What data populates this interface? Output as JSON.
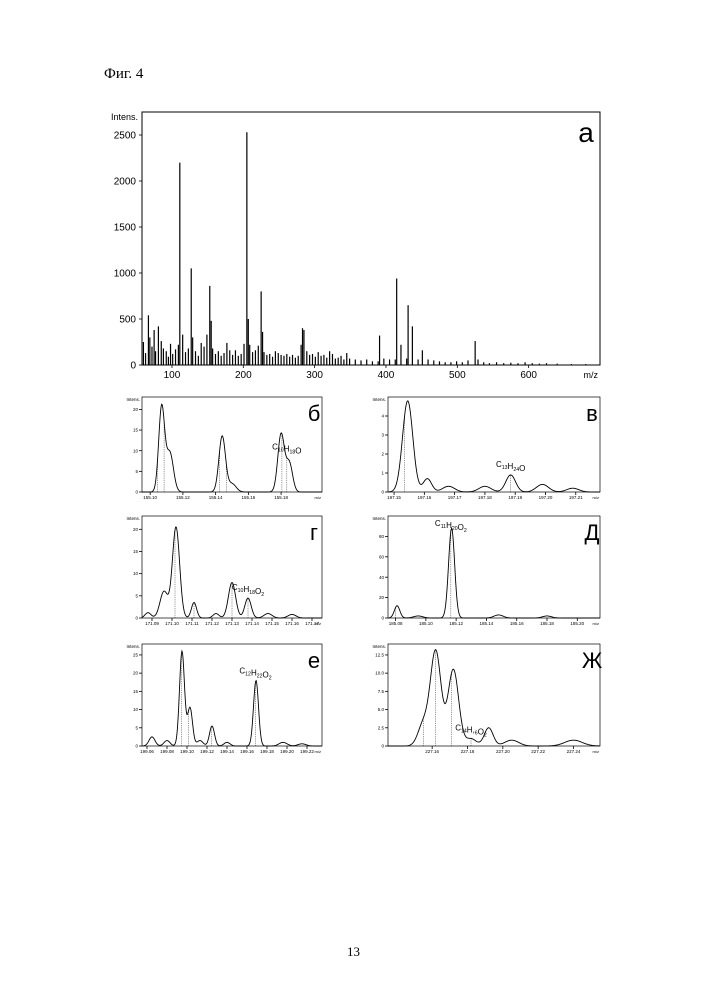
{
  "figure_caption": "Фиг. 4",
  "page_number": "13",
  "chart_data": [
    {
      "type": "bar",
      "panel": "а",
      "ylabel": "Intens.",
      "xlabel": "m/z",
      "xlim": [
        58,
        700
      ],
      "ylim": [
        0,
        2750
      ],
      "x_ticks": [
        100,
        200,
        300,
        400,
        500,
        600
      ],
      "x_tick_labels": [
        "100",
        "200",
        "300",
        "400",
        "500",
        "600"
      ],
      "y_ticks": [
        0,
        500,
        1000,
        1500,
        2000,
        2500
      ],
      "y_tick_labels": [
        "0",
        "500",
        "1000",
        "1500",
        "2000",
        "2500"
      ],
      "peaks_mz": [
        60,
        63,
        67,
        69,
        72,
        75,
        77,
        81,
        85,
        88,
        92,
        95,
        98,
        101,
        105,
        109,
        111,
        115,
        119,
        123,
        127,
        129,
        133,
        137,
        141,
        145,
        149,
        153,
        155,
        157,
        161,
        165,
        169,
        173,
        177,
        181,
        185,
        189,
        193,
        197,
        201,
        205,
        207,
        209,
        213,
        217,
        221,
        225,
        227,
        229,
        233,
        237,
        241,
        245,
        249,
        253,
        257,
        261,
        265,
        269,
        273,
        277,
        281,
        283,
        285,
        289,
        293,
        297,
        301,
        305,
        309,
        313,
        317,
        321,
        325,
        329,
        333,
        337,
        341,
        345,
        349,
        357,
        365,
        373,
        381,
        389,
        391,
        397,
        405,
        413,
        415,
        421,
        429,
        431,
        437,
        445,
        451,
        459,
        467,
        475,
        483,
        491,
        499,
        507,
        515,
        525,
        529,
        537,
        545,
        555,
        565,
        575,
        585,
        595,
        605,
        615,
        625,
        640,
        660,
        680
      ],
      "peaks_intensity": [
        250,
        130,
        540,
        300,
        200,
        380,
        150,
        420,
        260,
        180,
        150,
        90,
        230,
        120,
        170,
        220,
        2200,
        330,
        140,
        180,
        1050,
        300,
        150,
        100,
        240,
        200,
        330,
        860,
        480,
        180,
        120,
        150,
        100,
        130,
        240,
        160,
        110,
        160,
        100,
        120,
        230,
        2530,
        500,
        220,
        140,
        160,
        210,
        800,
        360,
        140,
        110,
        120,
        90,
        150,
        130,
        110,
        100,
        120,
        90,
        110,
        80,
        100,
        220,
        400,
        380,
        150,
        110,
        120,
        90,
        140,
        100,
        110,
        80,
        150,
        120,
        70,
        80,
        100,
        60,
        130,
        70,
        60,
        50,
        60,
        40,
        40,
        320,
        70,
        60,
        60,
        940,
        220,
        70,
        650,
        420,
        60,
        160,
        60,
        50,
        40,
        30,
        30,
        40,
        30,
        50,
        260,
        60,
        30,
        20,
        30,
        20,
        25,
        20,
        30,
        20,
        15,
        20,
        15,
        10,
        10
      ]
    },
    {
      "type": "line",
      "panel": "б",
      "ylabel": "Intens.",
      "xlabel": "m/z",
      "formula": "C10H18O",
      "xlim": [
        155.095,
        155.205
      ],
      "ylim": [
        0,
        23
      ],
      "x_ticks": [
        155.1,
        155.12,
        155.14,
        155.16,
        155.18
      ],
      "x_tick_labels": [
        "155.10",
        "155.12",
        "155.14",
        "155.16",
        "155.18"
      ],
      "y_ticks": [
        0,
        5,
        10,
        15,
        20
      ],
      "y_tick_labels": [
        "0",
        "5",
        "10",
        "15",
        "20"
      ],
      "peaks": [
        [
          155.107,
          20.5,
          0.0018
        ],
        [
          155.112,
          9.5,
          0.0022
        ],
        [
          155.144,
          13.5,
          0.002
        ],
        [
          155.15,
          2.0,
          0.0025
        ],
        [
          155.18,
          14.0,
          0.002
        ],
        [
          155.185,
          7.0,
          0.002
        ]
      ],
      "sticks": [
        155.1045,
        155.1085,
        155.1425,
        155.1465,
        155.1805,
        155.1835
      ]
    },
    {
      "type": "line",
      "panel": "в",
      "ylabel": "Intens.",
      "xlabel": "m/z",
      "formula": "C13H24O",
      "xlim": [
        197.148,
        197.218
      ],
      "ylim": [
        0,
        5
      ],
      "x_ticks": [
        197.15,
        197.16,
        197.17,
        197.18,
        197.19,
        197.2,
        197.21
      ],
      "x_tick_labels": [
        "197.15",
        "197.16",
        "197.17",
        "197.18",
        "197.19",
        "197.20",
        "197.21"
      ],
      "y_ticks": [
        0,
        1,
        2,
        3,
        4
      ],
      "y_tick_labels": [
        "0",
        "1",
        "2",
        "3",
        "4"
      ],
      "peaks": [
        [
          197.1545,
          4.8,
          0.0017
        ],
        [
          197.161,
          0.7,
          0.0014
        ],
        [
          197.168,
          0.3,
          0.002
        ],
        [
          197.18,
          0.3,
          0.002
        ],
        [
          197.1885,
          0.9,
          0.0016
        ],
        [
          197.199,
          0.4,
          0.002
        ],
        [
          197.209,
          0.2,
          0.002
        ]
      ],
      "sticks": [
        197.1535,
        197.1885
      ]
    },
    {
      "type": "line",
      "panel": "г",
      "ylabel": "Intens.",
      "xlabel": "m/z",
      "formula": "C10H18O2",
      "xlim": [
        171.085,
        171.175
      ],
      "ylim": [
        0,
        23
      ],
      "x_ticks": [
        171.09,
        171.1,
        171.11,
        171.12,
        171.13,
        171.14,
        171.15,
        171.16,
        171.17
      ],
      "x_tick_labels": [
        "171.09",
        "171.10",
        "171.11",
        "171.12",
        "171.13",
        "171.14",
        "171.15",
        "171.16",
        "171.17"
      ],
      "y_ticks": [
        0,
        5,
        10,
        15,
        20
      ],
      "y_tick_labels": [
        "0",
        "5",
        "10",
        "15",
        "20"
      ],
      "peaks": [
        [
          171.088,
          1.2,
          0.0015
        ],
        [
          171.096,
          6.0,
          0.002
        ],
        [
          171.102,
          20.5,
          0.0018
        ],
        [
          171.111,
          3.5,
          0.0013
        ],
        [
          171.122,
          1.0,
          0.0015
        ],
        [
          171.13,
          8.0,
          0.0018
        ],
        [
          171.138,
          4.5,
          0.0016
        ],
        [
          171.148,
          1.0,
          0.002
        ],
        [
          171.16,
          0.8,
          0.002
        ]
      ],
      "sticks": [
        171.1015,
        171.111,
        171.13,
        171.138
      ]
    },
    {
      "type": "line",
      "panel": "Д",
      "ylabel": "Intens.",
      "xlabel": "m/z",
      "formula": "C11H20O2",
      "xlim": [
        185.075,
        185.215
      ],
      "ylim": [
        0,
        100
      ],
      "x_ticks": [
        185.08,
        185.1,
        185.12,
        185.14,
        185.16,
        185.18,
        185.2
      ],
      "x_tick_labels": [
        "185.08",
        "185.10",
        "185.12",
        "185.14",
        "185.16",
        "185.18",
        "185.20"
      ],
      "y_ticks": [
        0,
        20,
        40,
        60,
        80
      ],
      "y_tick_labels": [
        "0",
        "20",
        "40",
        "60",
        "80"
      ],
      "peaks": [
        [
          185.081,
          12.0,
          0.0018
        ],
        [
          185.095,
          2.0,
          0.003
        ],
        [
          185.117,
          88.0,
          0.002
        ],
        [
          185.148,
          3.0,
          0.003
        ],
        [
          185.18,
          2.0,
          0.003
        ]
      ],
      "sticks": [
        185.08,
        185.1165
      ]
    },
    {
      "type": "line",
      "panel": "е",
      "ylabel": "Intens.",
      "xlabel": "m/z",
      "formula": "C12H22O2",
      "xlim": [
        199.055,
        199.235
      ],
      "ylim": [
        0,
        28
      ],
      "x_ticks": [
        199.06,
        199.08,
        199.1,
        199.12,
        199.14,
        199.16,
        199.18,
        199.2,
        199.22
      ],
      "x_tick_labels": [
        "199.06",
        "199.08",
        "199.10",
        "199.12",
        "199.14",
        "199.16",
        "199.18",
        "199.20",
        "199.22"
      ],
      "y_ticks": [
        0,
        5,
        10,
        15,
        20,
        25
      ],
      "y_tick_labels": [
        "0",
        "5",
        "10",
        "15",
        "20",
        "25"
      ],
      "peaks": [
        [
          199.065,
          2.5,
          0.003
        ],
        [
          199.08,
          1.5,
          0.003
        ],
        [
          199.095,
          26.0,
          0.0025
        ],
        [
          199.103,
          10.5,
          0.0025
        ],
        [
          199.113,
          1.5,
          0.003
        ],
        [
          199.125,
          5.5,
          0.0025
        ],
        [
          199.14,
          1.0,
          0.003
        ],
        [
          199.169,
          18.0,
          0.0025
        ],
        [
          199.196,
          1.0,
          0.004
        ],
        [
          199.215,
          0.6,
          0.004
        ]
      ],
      "sticks": [
        199.0945,
        199.1015,
        199.1245,
        199.1685
      ]
    },
    {
      "type": "line",
      "panel": "Ж",
      "ylabel": "Intens.",
      "xlabel": "m/z",
      "formula": "C14H,6O2",
      "xlim": [
        227.135,
        227.255
      ],
      "ylim": [
        0,
        14
      ],
      "x_ticks": [
        227.16,
        227.18,
        227.2,
        227.22,
        227.24
      ],
      "x_tick_labels": [
        "227.16",
        "227.18",
        "227.20",
        "227.22",
        "227.24"
      ],
      "y_ticks": [
        0,
        2.5,
        5.0,
        7.5,
        10.0,
        12.5
      ],
      "y_tick_labels": [
        "0",
        "2.5",
        "5.0",
        "7.5",
        "10.0",
        "12.5"
      ],
      "peaks": [
        [
          227.155,
          3.0,
          0.003
        ],
        [
          227.162,
          13.0,
          0.003
        ],
        [
          227.172,
          10.5,
          0.003
        ],
        [
          227.182,
          1.0,
          0.003
        ],
        [
          227.192,
          2.5,
          0.0025
        ],
        [
          227.205,
          0.8,
          0.004
        ],
        [
          227.24,
          0.8,
          0.005
        ]
      ],
      "sticks": [
        227.155,
        227.162,
        227.171,
        227.182
      ]
    }
  ]
}
